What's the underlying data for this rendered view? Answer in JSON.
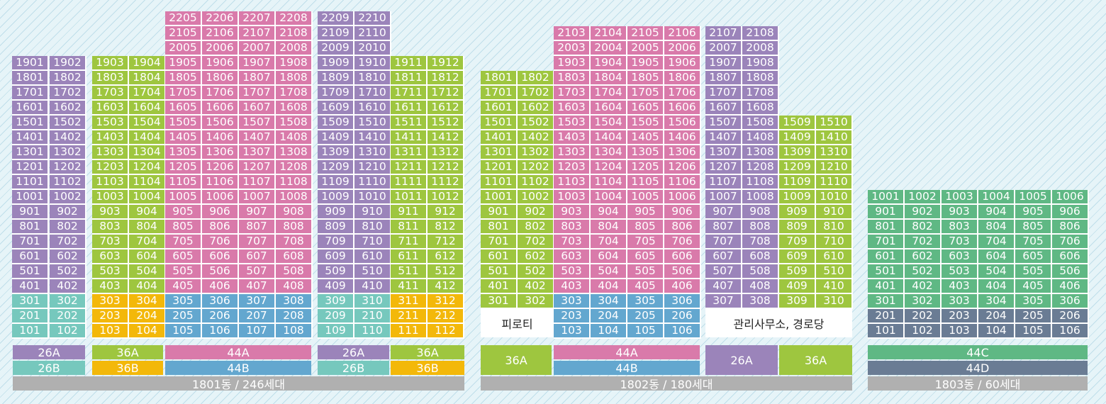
{
  "colors": {
    "26A": "#9b84ba",
    "26B": "#76c8bd",
    "36A": "#9ec63f",
    "36B": "#f3b80a",
    "44A": "#d97aaa",
    "44B": "#63a7cf",
    "44C": "#5fb884",
    "44D": "#6a7c94",
    "total": "#b0b0b0"
  },
  "buildings": [
    {
      "name": "1801동",
      "units": [
        {
          "col": 1,
          "types": [
            [
              1,
              2,
              "26B"
            ],
            [
              3,
              3,
              "26B"
            ],
            [
              4,
              19,
              "26A"
            ]
          ]
        },
        {
          "col": 2,
          "types": [
            [
              1,
              2,
              "26B"
            ],
            [
              3,
              3,
              "26B"
            ],
            [
              4,
              19,
              "26A"
            ]
          ]
        },
        {
          "col": 3,
          "types": [
            [
              1,
              3,
              "36B"
            ],
            [
              4,
              19,
              "36A"
            ]
          ]
        },
        {
          "col": 4,
          "types": [
            [
              1,
              3,
              "36B"
            ],
            [
              4,
              19,
              "36A"
            ]
          ]
        },
        {
          "col": 5,
          "types": [
            [
              1,
              3,
              "44B"
            ],
            [
              4,
              22,
              "44A"
            ]
          ]
        },
        {
          "col": 6,
          "types": [
            [
              1,
              3,
              "44B"
            ],
            [
              4,
              22,
              "44A"
            ]
          ]
        },
        {
          "col": 7,
          "types": [
            [
              1,
              3,
              "44B"
            ],
            [
              4,
              22,
              "44A"
            ]
          ]
        },
        {
          "col": 8,
          "types": [
            [
              1,
              3,
              "44B"
            ],
            [
              4,
              22,
              "44A"
            ]
          ]
        },
        {
          "col": 9,
          "types": [
            [
              1,
              3,
              "26B"
            ],
            [
              4,
              22,
              "26A"
            ]
          ]
        },
        {
          "col": 10,
          "types": [
            [
              1,
              3,
              "26B"
            ],
            [
              4,
              22,
              "26A"
            ]
          ]
        },
        {
          "col": 11,
          "types": [
            [
              1,
              3,
              "36B"
            ],
            [
              4,
              19,
              "36A"
            ]
          ]
        },
        {
          "col": 12,
          "types": [
            [
              1,
              3,
              "36B"
            ],
            [
              4,
              19,
              "36A"
            ]
          ]
        }
      ],
      "type_bars": [
        {
          "label": "26A",
          "type": "26A"
        },
        {
          "label": "26B",
          "type": "26B"
        },
        {
          "label": "36A",
          "type": "36A"
        },
        {
          "label": "36B",
          "type": "36B"
        },
        {
          "label": "44A",
          "type": "44A"
        },
        {
          "label": "44B",
          "type": "44B"
        },
        {
          "label": "26A",
          "type": "26A"
        },
        {
          "label": "36A",
          "type": "36A"
        },
        {
          "label": "26B",
          "type": "26B"
        },
        {
          "label": "36B",
          "type": "36B"
        }
      ],
      "total_label": "1801동 / 246세대"
    },
    {
      "name": "1802동",
      "units": [
        {
          "col": 1,
          "types": [
            [
              3,
              18,
              "36A"
            ]
          ]
        },
        {
          "col": 2,
          "types": [
            [
              3,
              18,
              "36A"
            ]
          ]
        },
        {
          "col": 3,
          "types": [
            [
              1,
              3,
              "44B"
            ],
            [
              4,
              21,
              "44A"
            ]
          ]
        },
        {
          "col": 4,
          "types": [
            [
              1,
              3,
              "44B"
            ],
            [
              4,
              21,
              "44A"
            ]
          ]
        },
        {
          "col": 5,
          "types": [
            [
              1,
              3,
              "44B"
            ],
            [
              4,
              21,
              "44A"
            ]
          ]
        },
        {
          "col": 6,
          "types": [
            [
              1,
              3,
              "44B"
            ],
            [
              4,
              21,
              "44A"
            ]
          ]
        },
        {
          "col": 7,
          "types": [
            [
              3,
              21,
              "26A"
            ]
          ]
        },
        {
          "col": 8,
          "types": [
            [
              3,
              21,
              "26A"
            ]
          ]
        },
        {
          "col": 9,
          "types": [
            [
              3,
              15,
              "36A"
            ]
          ]
        },
        {
          "col": 10,
          "types": [
            [
              3,
              15,
              "36A"
            ]
          ]
        }
      ],
      "ground_labels": [
        "피로티",
        "관리사무소, 경로당"
      ],
      "type_bars": [
        {
          "label": "36A",
          "type": "36A"
        },
        {
          "label": "44A",
          "type": "44A"
        },
        {
          "label": "44B",
          "type": "44B"
        },
        {
          "label": "26A",
          "type": "26A"
        },
        {
          "label": "36A",
          "type": "36A"
        }
      ],
      "total_label": "1802동 / 180세대"
    },
    {
      "name": "1803동",
      "units": [
        {
          "col": 1,
          "types": [
            [
              1,
              2,
              "44D"
            ],
            [
              3,
              10,
              "44C"
            ]
          ]
        },
        {
          "col": 2,
          "types": [
            [
              1,
              2,
              "44D"
            ],
            [
              3,
              10,
              "44C"
            ]
          ]
        },
        {
          "col": 3,
          "types": [
            [
              1,
              2,
              "44D"
            ],
            [
              3,
              10,
              "44C"
            ]
          ]
        },
        {
          "col": 4,
          "types": [
            [
              1,
              2,
              "44D"
            ],
            [
              3,
              10,
              "44C"
            ]
          ]
        },
        {
          "col": 5,
          "types": [
            [
              1,
              2,
              "44D"
            ],
            [
              3,
              10,
              "44C"
            ]
          ]
        },
        {
          "col": 6,
          "types": [
            [
              1,
              2,
              "44D"
            ],
            [
              3,
              10,
              "44C"
            ]
          ]
        }
      ],
      "type_bars": [
        {
          "label": "44C",
          "type": "44C"
        },
        {
          "label": "44D",
          "type": "44D"
        }
      ],
      "total_label": "1803동 / 60세대"
    }
  ]
}
